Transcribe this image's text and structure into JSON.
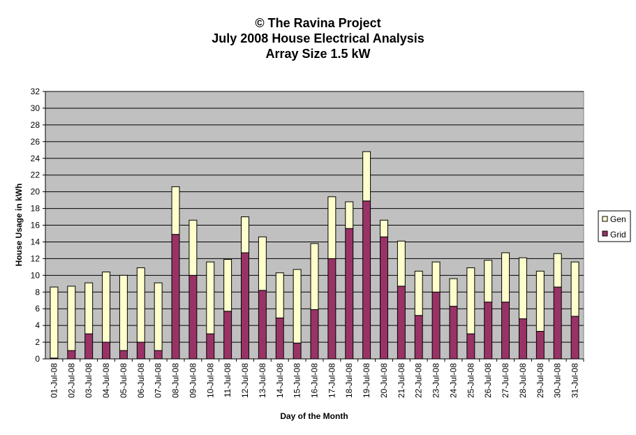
{
  "chart_data": {
    "type": "bar",
    "stacked": true,
    "title_lines": [
      "© The Ravina Project",
      "July 2008 House Electrical Analysis",
      "Array Size 1.5 kW"
    ],
    "xlabel": "Day of the Month",
    "ylabel": "House Usage in kWh",
    "ylim": [
      0,
      32
    ],
    "yticks": [
      0,
      2,
      4,
      6,
      8,
      10,
      12,
      14,
      16,
      18,
      20,
      22,
      24,
      26,
      28,
      30,
      32
    ],
    "grid": true,
    "legend_position": "right",
    "categories": [
      "01-Jul-08",
      "02-Jul-08",
      "03-Jul-08",
      "04-Jul-08",
      "05-Jul-08",
      "06-Jul-08",
      "07-Jul-08",
      "08-Jul-08",
      "09-Jul-08",
      "10-Jul-08",
      "11-Jul-08",
      "12-Jul-08",
      "13-Jul-08",
      "14-Jul-08",
      "15-Jul-08",
      "16-Jul-08",
      "17-Jul-08",
      "18-Jul-08",
      "19-Jul-08",
      "20-Jul-08",
      "21-Jul-08",
      "22-Jul-08",
      "23-Jul-08",
      "24-Jul-08",
      "25-Jul-08",
      "26-Jul-08",
      "27-Jul-08",
      "28-Jul-08",
      "29-Jul-08",
      "30-Jul-08",
      "31-Jul-08"
    ],
    "series": [
      {
        "name": "Grid",
        "color": "#993366",
        "values": [
          0.1,
          1.0,
          3.0,
          2.0,
          1.0,
          2.0,
          1.0,
          14.9,
          10.0,
          3.0,
          5.7,
          12.7,
          8.2,
          4.9,
          1.9,
          5.9,
          12.0,
          15.6,
          18.9,
          14.6,
          8.7,
          5.2,
          8.0,
          6.3,
          3.0,
          6.8,
          6.8,
          4.8,
          3.3,
          8.6,
          5.1
        ]
      },
      {
        "name": "Gen",
        "color": "#FFFFCC",
        "values": [
          8.5,
          7.7,
          6.1,
          8.4,
          9.0,
          8.9,
          8.1,
          5.7,
          6.6,
          8.6,
          6.2,
          4.3,
          6.4,
          5.4,
          8.8,
          7.9,
          7.4,
          3.2,
          5.9,
          2.0,
          5.4,
          5.3,
          3.6,
          3.3,
          7.9,
          5.0,
          5.9,
          7.3,
          7.2,
          4.0,
          6.5
        ]
      }
    ],
    "colors": {
      "plot_background": "#C0C0C0",
      "gridline": "#000000"
    }
  }
}
